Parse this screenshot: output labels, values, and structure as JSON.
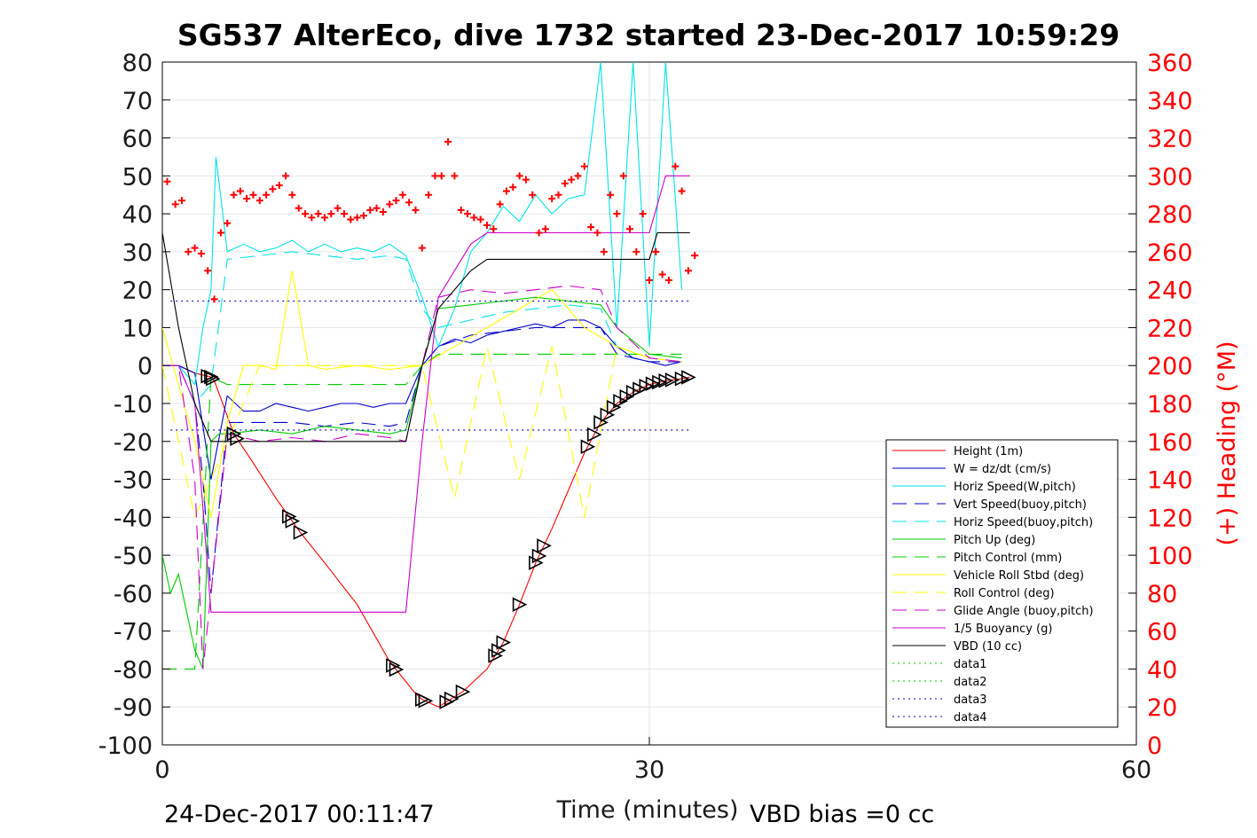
{
  "chart_data": {
    "type": "line",
    "title": "SG537 AlterEco, dive 1732 started 23-Dec-2017 10:59:29",
    "xlabel": "Time (minutes)",
    "ylabel_right": "(+) Heading (°M)",
    "xlim": [
      0,
      60
    ],
    "ylim_left": [
      -100,
      80
    ],
    "ylim_right": [
      0,
      360
    ],
    "x_ticks": [
      "0",
      "30",
      "60"
    ],
    "y_ticks_left": [
      "80",
      "70",
      "60",
      "50",
      "40",
      "30",
      "20",
      "10",
      "0",
      "-10",
      "-20",
      "-30",
      "-40",
      "-50",
      "-60",
      "-70",
      "-80",
      "-90",
      "-100"
    ],
    "y_ticks_right": [
      "360",
      "340",
      "320",
      "300",
      "280",
      "260",
      "240",
      "220",
      "200",
      "180",
      "160",
      "140",
      "120",
      "100",
      "80",
      "60",
      "40",
      "20",
      "0"
    ],
    "grid": true,
    "legend_position": "lower-right",
    "right_axis_color": "#ff0000",
    "footer": {
      "date": "24-Dec-2017 00:11:47",
      "vbd_bias": "VBD bias =0 cc"
    },
    "series": [
      {
        "name": "Height (1m)",
        "color": "#ff0000",
        "style": "solid",
        "x": [
          0,
          1.0,
          2.0,
          3.0,
          3.2,
          4.4,
          5.5,
          7,
          8.5,
          10,
          12,
          14,
          15.5,
          16,
          17,
          18.5,
          20,
          21,
          22,
          23,
          24,
          25,
          26,
          27,
          28,
          29,
          30,
          31,
          32,
          32.5
        ],
        "y": [
          0,
          0,
          -2,
          -3,
          -4,
          -18,
          -25,
          -35,
          -44,
          -52,
          -63,
          -78,
          -86,
          -88,
          -90,
          -86,
          -80,
          -73,
          -63,
          -52,
          -43,
          -33,
          -23,
          -15,
          -10,
          -7,
          -5,
          -4,
          -3.5,
          -3
        ]
      },
      {
        "name": "W = dz/dt (cm/s)",
        "color": "#0000cc",
        "style": "solid",
        "x": [
          0,
          1,
          2,
          3,
          4,
          5,
          6,
          7,
          8,
          9,
          10,
          11,
          12,
          13,
          14,
          15,
          16,
          17,
          18,
          19,
          20,
          21,
          22,
          23,
          24,
          25,
          26,
          27,
          28,
          29,
          30,
          31,
          32
        ],
        "y": [
          0,
          0,
          -2,
          -30,
          -8,
          -12,
          -12,
          -10,
          -11,
          -12,
          -11,
          -10,
          -10,
          -11,
          -10,
          -10,
          0,
          5,
          7,
          6,
          8,
          9,
          10,
          11,
          10,
          12,
          12,
          10,
          5,
          2,
          1,
          0,
          1
        ]
      },
      {
        "name": "Horiz Speed(W,pitch)",
        "color": "#00e5e5",
        "style": "solid",
        "x": [
          0,
          1,
          2,
          2.5,
          3,
          3.3,
          4,
          5,
          6,
          7,
          8,
          9,
          10,
          11,
          12,
          13,
          14,
          15,
          16,
          17,
          18,
          19,
          20,
          21,
          22,
          23,
          24,
          25,
          26,
          27,
          28,
          29,
          30,
          31,
          32
        ],
        "y": [
          0,
          0,
          -5,
          10,
          20,
          55,
          30,
          32,
          30,
          31,
          33,
          30,
          32,
          30,
          31,
          30,
          32,
          29,
          18,
          5,
          15,
          30,
          35,
          42,
          38,
          45,
          40,
          44,
          45,
          80,
          10,
          80,
          5,
          80,
          20
        ]
      },
      {
        "name": "Vert Speed(buoy,pitch)",
        "color": "#0000cc",
        "style": "dashed",
        "x": [
          0,
          1,
          2,
          2.5,
          3,
          4,
          6,
          8,
          10,
          12,
          14,
          15,
          16,
          17,
          19,
          21,
          23,
          25,
          27,
          28,
          30,
          32
        ],
        "y": [
          0,
          0,
          -10,
          -30,
          -60,
          -15,
          -15,
          -15,
          -16,
          -15,
          -16,
          -15,
          0,
          5,
          8,
          9,
          10,
          10,
          10,
          3,
          1,
          1
        ]
      },
      {
        "name": "Horiz Speed(buoy,pitch)",
        "color": "#00e5e5",
        "style": "dashed",
        "x": [
          0,
          1,
          2,
          3,
          4,
          6,
          8,
          10,
          12,
          14,
          15,
          16,
          17,
          19,
          21,
          23,
          25,
          27,
          28,
          30,
          32
        ],
        "y": [
          0,
          0,
          -10,
          -5,
          28,
          29,
          30,
          29,
          28,
          29,
          28,
          15,
          10,
          12,
          14,
          15,
          16,
          15,
          5,
          2,
          1
        ]
      },
      {
        "name": "Pitch Up (deg)",
        "color": "#00cc00",
        "style": "solid",
        "x": [
          0,
          0.5,
          1,
          1.5,
          2,
          2.5,
          3,
          3.5,
          4,
          6,
          8,
          10,
          12,
          14,
          15,
          16,
          17,
          19,
          21,
          23,
          25,
          27,
          28,
          30,
          32
        ],
        "y": [
          -50,
          -60,
          -55,
          -65,
          -75,
          -80,
          -20,
          -18,
          -18,
          -17,
          -18,
          -16,
          -17,
          -18,
          -17,
          0,
          15,
          16,
          17,
          18,
          17,
          16,
          10,
          3,
          2
        ]
      },
      {
        "name": "Pitch Control (mm)",
        "color": "#00cc00",
        "style": "dashed",
        "x": [
          0,
          2,
          3,
          4,
          15,
          16,
          17,
          20,
          25,
          30,
          32
        ],
        "y": [
          -80,
          -80,
          -3,
          -5,
          -5,
          0,
          3,
          3,
          3,
          3,
          3
        ]
      },
      {
        "name": "Vehicle Roll Stbd (deg)",
        "color": "#ffff00",
        "style": "solid",
        "x": [
          0,
          1,
          2,
          3,
          4,
          5,
          6,
          7,
          8,
          9,
          10,
          12,
          14,
          16,
          18,
          20,
          22,
          24,
          26,
          28,
          30,
          32
        ],
        "y": [
          10,
          -5,
          -20,
          -40,
          -15,
          0,
          0,
          -1,
          25,
          0,
          -1,
          0,
          -1,
          0,
          5,
          10,
          15,
          20,
          10,
          5,
          2,
          1
        ]
      },
      {
        "name": "Roll Control (deg)",
        "color": "#ffff00",
        "style": "dashed",
        "x": [
          0,
          2,
          4,
          6,
          10,
          14,
          16,
          18,
          20,
          22,
          24,
          26,
          28,
          30,
          32
        ],
        "y": [
          0,
          -40,
          -20,
          0,
          0,
          0,
          0,
          -35,
          5,
          -30,
          5,
          -40,
          5,
          2,
          1
        ]
      },
      {
        "name": "Glide Angle (buoy,pitch)",
        "color": "#cc00cc",
        "style": "dashed",
        "x": [
          0,
          1,
          2,
          2.5,
          3,
          4,
          6,
          8,
          10,
          12,
          14,
          15,
          16,
          17,
          19,
          21,
          23,
          25,
          27,
          28,
          30,
          32
        ],
        "y": [
          0,
          0,
          -30,
          -80,
          -60,
          -18,
          -20,
          -19,
          -20,
          -18,
          -19,
          -20,
          0,
          18,
          20,
          19,
          20,
          21,
          20,
          10,
          2,
          1
        ]
      },
      {
        "name": "1/5 Buoyancy (g)",
        "color": "#cc00cc",
        "style": "solid",
        "x": [
          0,
          1,
          2,
          3,
          15,
          16,
          17,
          19,
          20,
          30,
          31,
          32.5
        ],
        "y": [
          0,
          0,
          -10,
          -65,
          -65,
          -20,
          18,
          32,
          35,
          35,
          50,
          50
        ]
      },
      {
        "name": "VBD (10 cc)",
        "color": "#000000",
        "style": "solid",
        "x": [
          0,
          1,
          2,
          3,
          15,
          16,
          17,
          19,
          20,
          30,
          30.5,
          32.5
        ],
        "y": [
          35,
          10,
          -10,
          -20,
          -20,
          0,
          15,
          25,
          28,
          28,
          35,
          35
        ]
      },
      {
        "name": "data1",
        "color": "#00cc00",
        "style": "dotted",
        "x": [],
        "y": []
      },
      {
        "name": "data2",
        "color": "#00cc00",
        "style": "dotted",
        "x": [],
        "y": []
      },
      {
        "name": "data3",
        "color": "#0000cc",
        "style": "dotted",
        "x": [
          0.5,
          32.5
        ],
        "y": [
          17,
          17
        ]
      },
      {
        "name": "data4",
        "color": "#0000cc",
        "style": "dotted",
        "x": [
          0.5,
          32.5
        ],
        "y": [
          -17,
          -17
        ]
      }
    ],
    "heading_points": {
      "color": "#ff0000",
      "axis": "right",
      "x": [
        0.3,
        0.8,
        1.2,
        1.6,
        2.0,
        2.4,
        2.8,
        3.2,
        3.6,
        4.0,
        4.4,
        4.8,
        5.2,
        5.6,
        6.0,
        6.4,
        6.8,
        7.2,
        7.6,
        8.0,
        8.4,
        8.8,
        9.2,
        9.6,
        10.0,
        10.4,
        10.8,
        11.2,
        11.6,
        12.0,
        12.4,
        12.8,
        13.2,
        13.6,
        14.0,
        14.4,
        14.8,
        15.2,
        15.6,
        16.0,
        16.4,
        16.8,
        17.2,
        17.6,
        18.0,
        18.4,
        18.8,
        19.2,
        19.6,
        20.0,
        20.4,
        20.8,
        21.2,
        21.6,
        22.0,
        22.4,
        22.8,
        23.2,
        23.6,
        24.0,
        24.4,
        24.8,
        25.2,
        25.6,
        26.0,
        26.4,
        26.8,
        27.2,
        27.6,
        28.0,
        28.4,
        28.8,
        29.2,
        29.6,
        30.0,
        30.4,
        30.8,
        31.2,
        31.6,
        32.0,
        32.4,
        32.8
      ],
      "y": [
        297,
        285,
        287,
        260,
        262,
        259,
        250,
        235,
        270,
        275,
        290,
        292,
        288,
        290,
        287,
        290,
        293,
        295,
        300,
        290,
        283,
        280,
        278,
        280,
        278,
        280,
        283,
        280,
        277,
        278,
        279,
        282,
        283,
        281,
        285,
        287,
        290,
        286,
        282,
        262,
        290,
        300,
        300,
        318,
        300,
        282,
        280,
        278,
        277,
        274,
        272,
        285,
        292,
        294,
        300,
        298,
        290,
        270,
        272,
        288,
        290,
        296,
        298,
        300,
        305,
        273,
        270,
        260,
        290,
        280,
        300,
        272,
        260,
        280,
        245,
        260,
        248,
        245,
        305,
        292,
        250,
        258
      ]
    }
  }
}
